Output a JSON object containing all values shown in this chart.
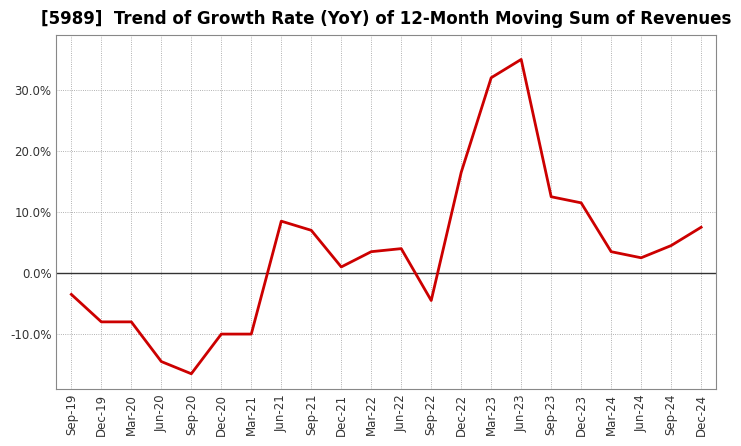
{
  "title": "[5989]  Trend of Growth Rate (YoY) of 12-Month Moving Sum of Revenues",
  "x_labels": [
    "Sep-19",
    "Dec-19",
    "Mar-20",
    "Jun-20",
    "Sep-20",
    "Dec-20",
    "Mar-21",
    "Jun-21",
    "Sep-21",
    "Dec-21",
    "Mar-22",
    "Jun-22",
    "Sep-22",
    "Dec-22",
    "Mar-23",
    "Jun-23",
    "Sep-23",
    "Dec-23",
    "Mar-24",
    "Jun-24",
    "Sep-24",
    "Dec-24"
  ],
  "y_values": [
    -3.5,
    -8.0,
    -8.0,
    -14.5,
    -16.5,
    -10.0,
    -10.0,
    8.5,
    7.0,
    1.0,
    3.5,
    4.0,
    -4.5,
    16.5,
    32.0,
    35.0,
    12.5,
    11.5,
    3.5,
    2.5,
    4.5,
    7.5
  ],
  "line_color": "#cc0000",
  "line_width": 2.0,
  "background_color": "#ffffff",
  "plot_bg_color": "#ffffff",
  "grid_color": "#999999",
  "zero_line_color": "#333333",
  "ylim": [
    -19,
    39
  ],
  "ytick_values": [
    -10,
    0,
    10,
    20,
    30
  ],
  "title_fontsize": 12,
  "tick_fontsize": 8.5,
  "title_color": "#000000",
  "spine_color": "#888888"
}
